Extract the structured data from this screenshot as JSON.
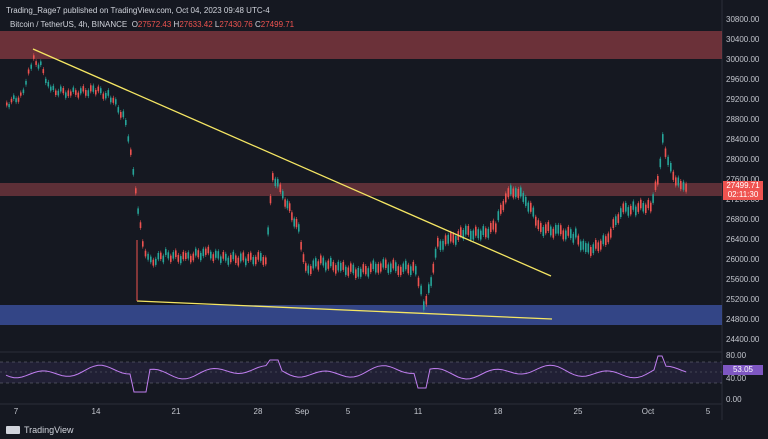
{
  "header": {
    "publisher": "Trading_Rage7 published on TradingView.com, Oct 04, 2023 09:48 UTC-4"
  },
  "symbol": {
    "name": "Bitcoin / TetherUS, 4h, BINANCE",
    "o_label": "O",
    "o": "27572.43",
    "h_label": "H",
    "h": "27633.42",
    "l_label": "L",
    "l": "27430.76",
    "c_label": "C",
    "c": "27499.71"
  },
  "price_axis": [
    "30800.00",
    "30400.00",
    "30000.00",
    "29600.00",
    "29200.00",
    "28800.00",
    "28400.00",
    "28000.00",
    "27600.00",
    "27200.00",
    "26800.00",
    "26400.00",
    "26000.00",
    "25600.00",
    "25200.00",
    "24800.00",
    "24400.00"
  ],
  "rsi_axis": [
    "80.00",
    "40.00",
    "0.00"
  ],
  "time_axis": [
    "7",
    "14",
    "21",
    "28",
    "Sep",
    "5",
    "11",
    "18",
    "25",
    "Oct",
    "5"
  ],
  "last_price": {
    "value": "27499.71",
    "countdown": "02:11:30"
  },
  "rsi_value": "53.05",
  "logo_text": "TradingView",
  "colors": {
    "bull": "#26a69a",
    "bear": "#ef5350",
    "trend": "#f5e663",
    "supply": "#b2474f",
    "demand": "#3d54a8",
    "rsi": "#c07ef0"
  }
}
